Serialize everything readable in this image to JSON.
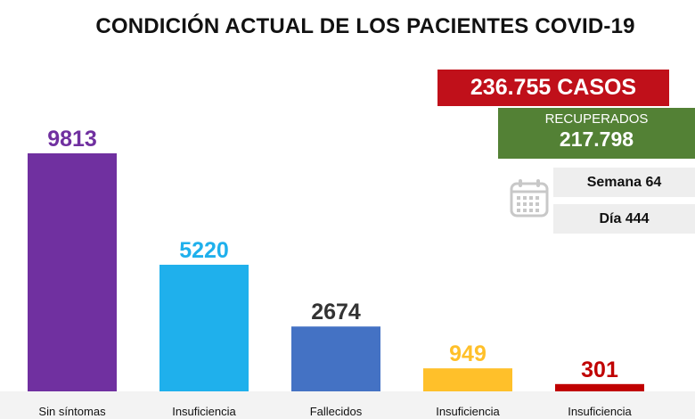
{
  "title": "CONDICIÓN ACTUAL DE LOS PACIENTES COVID-19",
  "summary": {
    "cases": "236.755 CASOS",
    "recovered_label": "RECUPERADOS",
    "recovered_value": "217.798",
    "week": "Semana 64",
    "day": "Día 444",
    "calendar_icon": "calendar-icon"
  },
  "colors": {
    "cases_bg": "#c0101a",
    "recovered_bg": "#538135",
    "info_bg": "#eeeeee"
  },
  "chart_data": {
    "type": "bar",
    "title": "CONDICIÓN ACTUAL DE LOS PACIENTES COVID-19",
    "categories": [
      "Sin síntomas",
      "Insuficiencia",
      "Fallecidos",
      "Insuficiencia",
      "Insuficiencia"
    ],
    "values": [
      9813,
      5220,
      2674,
      949,
      301
    ],
    "value_labels": [
      "9813",
      "5220",
      "2674",
      "949",
      "301"
    ],
    "bar_colors": [
      "#7030a0",
      "#1fb0ec",
      "#4472c4",
      "#ffc02a",
      "#c00000"
    ],
    "label_colors": [
      "#7030a0",
      "#1fb0ec",
      "#333333",
      "#ffc02a",
      "#c00000"
    ],
    "ylim": [
      0,
      9813
    ],
    "grid": false,
    "legend": "none"
  }
}
